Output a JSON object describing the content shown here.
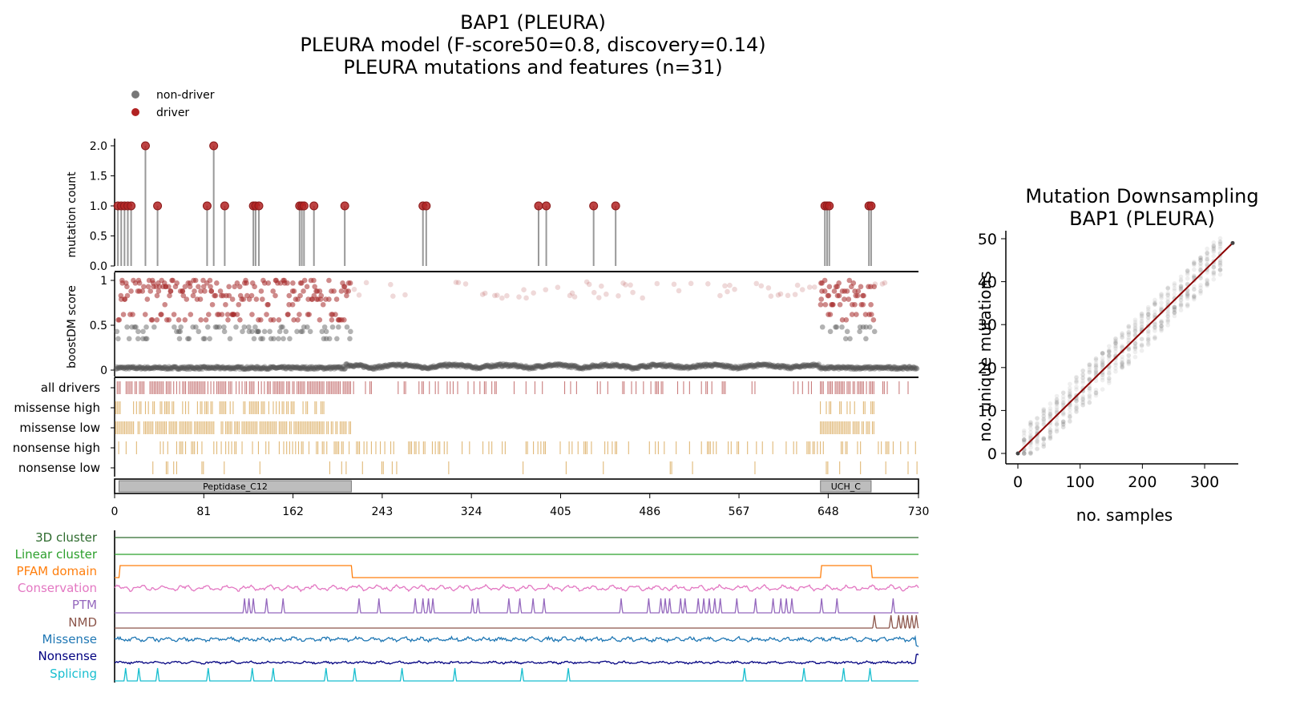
{
  "title_lines": [
    "BAP1 (PLEURA)",
    "PLEURA model (F-score50=0.8, discovery=0.14)",
    "PLEURA mutations and features (n=31)"
  ],
  "legend": [
    {
      "label": "non-driver",
      "color": "#777777"
    },
    {
      "label": "driver",
      "color": "#b22222"
    }
  ],
  "colors": {
    "driver": "#a52a2a",
    "nondriver": "#555555",
    "lollipop_stem": "#999999",
    "rug_driver": "#c97c7c",
    "rug_feature": "#e0b877",
    "domain_fill": "#bdbdbd",
    "trend_line": "#8b0000"
  },
  "chart_data": [
    {
      "type": "lollipop",
      "name": "mutation-count",
      "ylabel": "mutation count",
      "ylim": [
        0,
        2
      ],
      "yticks": [
        "0.0",
        "0.5",
        "1.0",
        "1.5",
        "2.0"
      ],
      "xlim": [
        0,
        730
      ],
      "xticks": [
        "0",
        "81",
        "162",
        "243",
        "324",
        "405",
        "486",
        "567",
        "648",
        "730"
      ],
      "x": [
        3,
        6,
        9,
        12,
        15,
        28,
        39,
        84,
        90,
        100,
        126,
        128,
        131,
        168,
        170,
        172,
        181,
        209,
        280,
        283,
        385,
        392,
        435,
        455,
        645,
        647,
        649,
        685,
        687
      ],
      "y": [
        1,
        1,
        1,
        1,
        1,
        2,
        1,
        1,
        2,
        1,
        1,
        1,
        1,
        1,
        1,
        1,
        1,
        1,
        1,
        1,
        1,
        1,
        1,
        1,
        1,
        1,
        1,
        1,
        1
      ]
    },
    {
      "type": "scatter",
      "name": "boostdm-score",
      "ylabel": "boostDM score",
      "ylim": [
        0,
        1
      ],
      "yticks": [
        "0",
        "0.5",
        "1"
      ],
      "xlim": [
        0,
        730
      ],
      "note": "per-position in-silico saturation scores; drivers red, non-drivers grey",
      "driver_regions": [
        [
          0,
          215
        ],
        [
          640,
          690
        ]
      ]
    },
    {
      "type": "table",
      "name": "mutation-rugs",
      "rows": [
        {
          "label": "all drivers",
          "regions": [
            [
              0,
              215
            ],
            [
              640,
              690
            ]
          ]
        },
        {
          "label": "missense high",
          "regions": [
            [
              0,
              190
            ],
            [
              640,
              690
            ]
          ]
        },
        {
          "label": "missense low",
          "regions": [
            [
              0,
              215
            ],
            [
              640,
              690
            ]
          ]
        },
        {
          "label": "nonsense high",
          "regions": [
            [
              0,
              730
            ]
          ]
        },
        {
          "label": "nonsense low",
          "regions": [
            [
              30,
              730
            ]
          ]
        }
      ]
    },
    {
      "type": "bar",
      "name": "pfam-domains",
      "domains": [
        {
          "label": "Peptidase_C12",
          "start": 4,
          "end": 215
        },
        {
          "label": "UCH_C",
          "start": 641,
          "end": 687
        }
      ]
    },
    {
      "type": "line",
      "name": "feature-tracks",
      "tracks": [
        {
          "label": "3D cluster",
          "color": "#2e6b2e"
        },
        {
          "label": "Linear cluster",
          "color": "#2ca02c"
        },
        {
          "label": "PFAM domain",
          "color": "#ff7f0e"
        },
        {
          "label": "Conservation",
          "color": "#e377c2"
        },
        {
          "label": "PTM",
          "color": "#9467bd"
        },
        {
          "label": "NMD",
          "color": "#8c564b"
        },
        {
          "label": "Missense",
          "color": "#1f77b4"
        },
        {
          "label": "Nonsense",
          "color": "#000080"
        },
        {
          "label": "Splicing",
          "color": "#17becf"
        }
      ],
      "ptm_positions": [
        118,
        122,
        126,
        138,
        153,
        222,
        240,
        273,
        280,
        285,
        289,
        325,
        330,
        358,
        368,
        380,
        390,
        460,
        485,
        496,
        500,
        504,
        514,
        518,
        530,
        535,
        540,
        545,
        550,
        565,
        582,
        598,
        605,
        610,
        615,
        642,
        656,
        707
      ],
      "nmd_positions": [
        690,
        705,
        712,
        716,
        720,
        724,
        728
      ],
      "splicing_positions": [
        10,
        22,
        39,
        85,
        125,
        144,
        192,
        218,
        261,
        309,
        370,
        412,
        572,
        626,
        662,
        686
      ]
    },
    {
      "type": "scatter",
      "name": "mutation-downsampling",
      "title": "Mutation Downsampling\nBAP1 (PLEURA)",
      "xlabel": "no. samples",
      "ylabel": "no. unique mutations",
      "xlim": [
        0,
        345
      ],
      "ylim": [
        0,
        50
      ],
      "xticks": [
        "0",
        "100",
        "200",
        "300"
      ],
      "yticks": [
        "0",
        "10",
        "20",
        "30",
        "40",
        "50"
      ],
      "x": [
        0,
        345
      ],
      "y": [
        0,
        49
      ]
    }
  ],
  "texts": {
    "title1": "BAP1 (PLEURA)",
    "title2": "PLEURA model (F-score50=0.8, discovery=0.14)",
    "title3": "PLEURA mutations and features (n=31)",
    "legend_nondriver": "non-driver",
    "legend_driver": "driver",
    "ylabel_count": "mutation count",
    "ylabel_score": "boostDM score",
    "right_title1": "Mutation Downsampling",
    "right_title2": "BAP1 (PLEURA)",
    "right_xlabel": "no. samples",
    "right_ylabel": "no. unique mutations"
  }
}
